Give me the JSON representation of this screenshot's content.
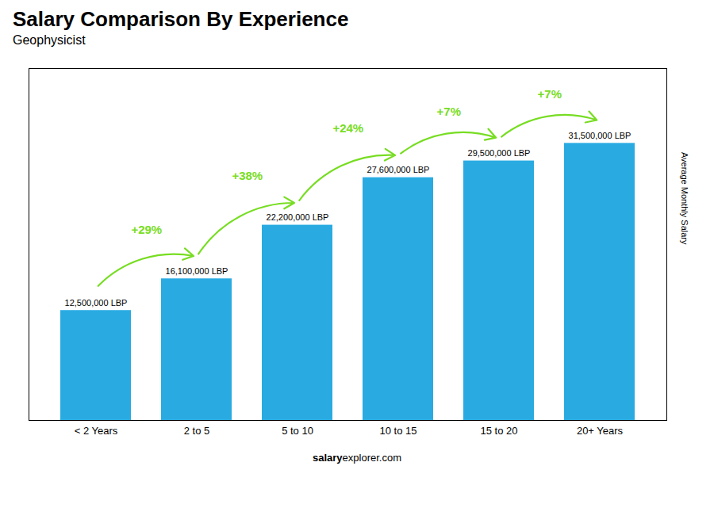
{
  "chart_data": {
    "type": "bar",
    "title": "Salary Comparison By Experience",
    "subtitle": "Geophysicist",
    "ylabel": "Average Monthly Salary",
    "categories": [
      "< 2 Years",
      "2 to 5",
      "5 to 10",
      "10 to 15",
      "15 to 20",
      "20+ Years"
    ],
    "values": [
      12500000,
      16100000,
      22200000,
      27600000,
      29500000,
      31500000
    ],
    "value_labels": [
      "12,500,000 LBP",
      "16,100,000 LBP",
      "22,200,000 LBP",
      "27,600,000 LBP",
      "29,500,000 LBP",
      "31,500,000 LBP"
    ],
    "data_labels": true,
    "color": "#29ABE2",
    "ylim": [
      0,
      40000000
    ],
    "tick_labels": "x",
    "annotations": [
      {
        "text": "+29%",
        "color": "#77DD22"
      },
      {
        "text": "+38%",
        "color": "#77DD22"
      },
      {
        "text": "+24%",
        "color": "#77DD22"
      },
      {
        "text": "+7%",
        "color": "#77DD22"
      },
      {
        "text": "+7%",
        "color": "#77DD22"
      }
    ],
    "footer": [
      "salary",
      "explorer.com"
    ]
  }
}
